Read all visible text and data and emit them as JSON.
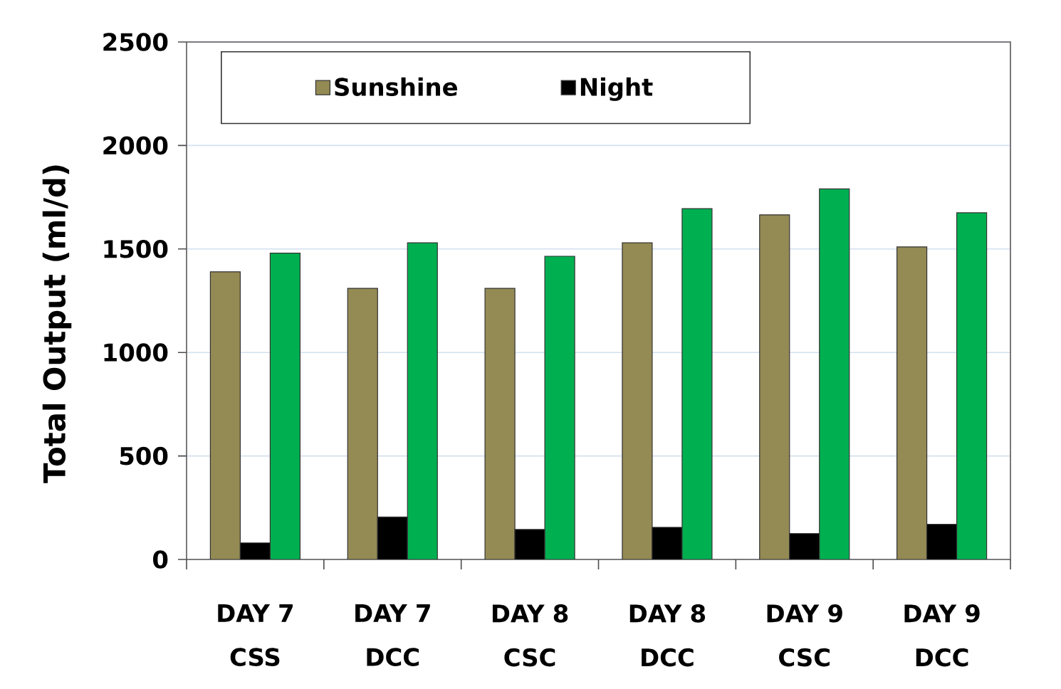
{
  "chart_data": {
    "type": "bar",
    "ylabel": "Total Output (ml/d)",
    "categories": [
      "DAY 7 CSS",
      "DAY 7 DCC",
      "DAY 8 CSC",
      "DAY 8 DCC",
      "DAY 9 CSC",
      "DAY 9 DCC"
    ],
    "series": [
      {
        "name": "Sunshine",
        "color": "#948a54",
        "values": [
          1390,
          1310,
          1310,
          1530,
          1665,
          1510
        ]
      },
      {
        "name": "Night",
        "color": "#000000",
        "values": [
          80,
          205,
          145,
          155,
          125,
          170
        ]
      },
      {
        "color": "#00b050",
        "values": [
          1480,
          1530,
          1465,
          1695,
          1790,
          1675
        ]
      }
    ],
    "ylim": [
      0,
      2500
    ],
    "yticks": [
      0,
      500,
      1000,
      1500,
      2000,
      2500
    ],
    "grid": "y",
    "legend": "top left"
  }
}
